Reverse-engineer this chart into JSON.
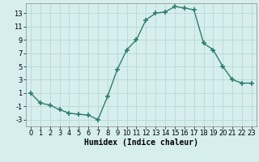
{
  "x": [
    0,
    1,
    2,
    3,
    4,
    5,
    6,
    7,
    8,
    9,
    10,
    11,
    12,
    13,
    14,
    15,
    16,
    17,
    18,
    19,
    20,
    21,
    22,
    23
  ],
  "y": [
    1,
    -0.5,
    -0.8,
    -1.5,
    -2.0,
    -2.2,
    -2.3,
    -3.0,
    0.5,
    4.5,
    7.5,
    9.0,
    12.0,
    13.0,
    13.2,
    14.0,
    13.8,
    13.5,
    8.5,
    7.5,
    5.0,
    3.0,
    2.5,
    2.5
  ],
  "line_color": "#2e7d6e",
  "marker": "+",
  "marker_size": 4,
  "marker_edge_width": 1.2,
  "bg_color": "#d6eeee",
  "grid_color": "#b8d8d8",
  "xlabel": "Humidex (Indice chaleur)",
  "xlim": [
    -0.5,
    23.5
  ],
  "ylim": [
    -4,
    14.5
  ],
  "yticks": [
    -3,
    -1,
    1,
    3,
    5,
    7,
    9,
    11,
    13
  ],
  "xticks": [
    0,
    1,
    2,
    3,
    4,
    5,
    6,
    7,
    8,
    9,
    10,
    11,
    12,
    13,
    14,
    15,
    16,
    17,
    18,
    19,
    20,
    21,
    22,
    23
  ],
  "xlabel_fontsize": 7,
  "tick_fontsize": 6,
  "line_width": 1.0
}
